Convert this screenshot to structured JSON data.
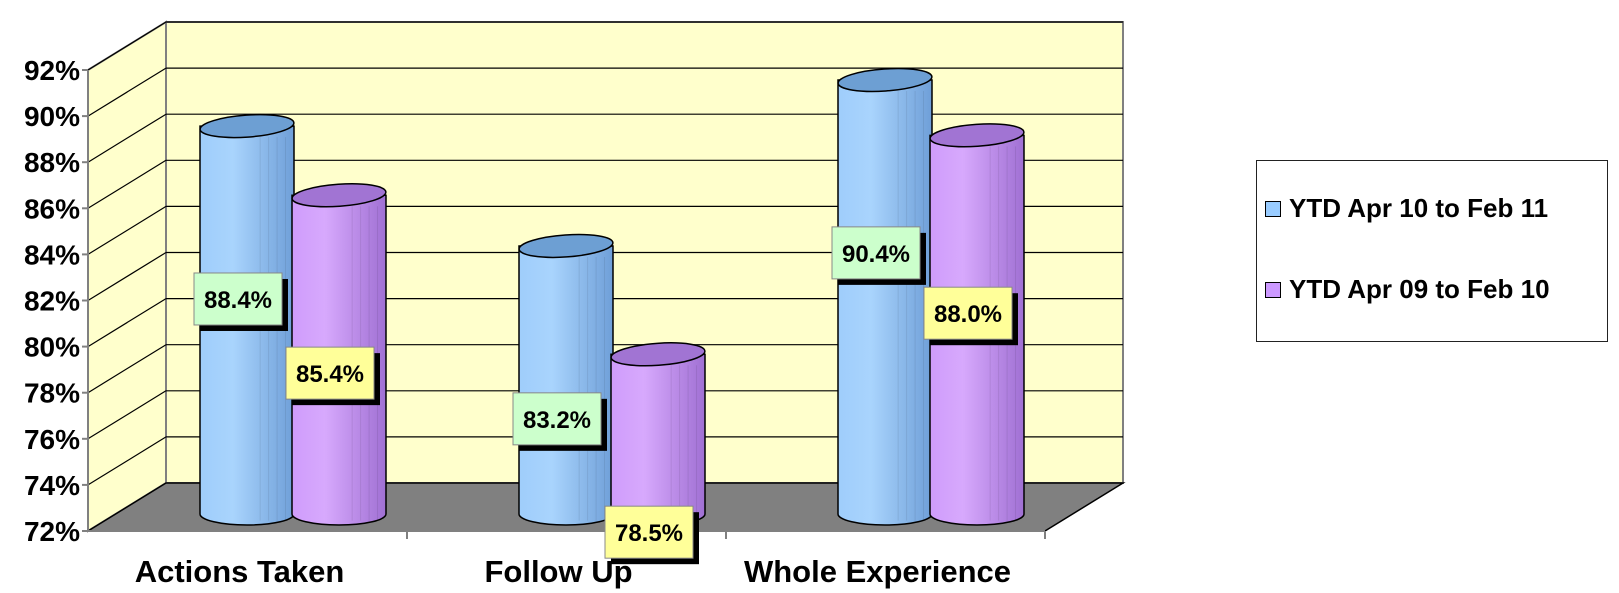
{
  "chart_data": {
    "type": "bar",
    "categories": [
      "Actions Taken",
      "Follow Up",
      "Whole Experience"
    ],
    "series": [
      {
        "name": "YTD Apr 10 to Feb 11",
        "values": [
          88.4,
          83.2,
          90.4
        ],
        "labels": [
          "88.4%",
          "83.2%",
          "90.4%"
        ],
        "color": "#99ccff",
        "label_bg": "#ccffcc"
      },
      {
        "name": "YTD Apr 09 to Feb 10",
        "values": [
          85.4,
          78.5,
          88.0
        ],
        "labels": [
          "85.4%",
          "78.5%",
          "88.0%"
        ],
        "color": "#cc99ff",
        "label_bg": "#ffff99"
      }
    ],
    "yticks": [
      "72%",
      "74%",
      "76%",
      "78%",
      "80%",
      "82%",
      "84%",
      "86%",
      "88%",
      "90%",
      "92%"
    ],
    "ylim": [
      72,
      92
    ],
    "title": "",
    "xlabel": "",
    "ylabel": "",
    "grid": true,
    "legend_position": "right",
    "style": "3d-cylinder",
    "wall_color": "#ffffcc",
    "floor_color": "#808080"
  }
}
